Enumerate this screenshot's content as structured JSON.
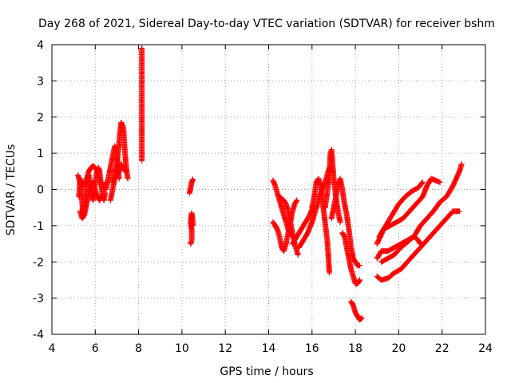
{
  "chart_data": {
    "type": "scatter",
    "title": "Day 268 of 2021, Sidereal Day-to-day VTEC variation (SDTVAR) for receiver bshm",
    "xlabel": "GPS time / hours",
    "ylabel": "SDTVAR / TECUs",
    "xlim": [
      4,
      24
    ],
    "ylim": [
      -4,
      4
    ],
    "xticks": [
      "4",
      "6",
      "8",
      "10",
      "12",
      "14",
      "16",
      "18",
      "20",
      "22",
      "24"
    ],
    "yticks": [
      "-4",
      "-3",
      "-2",
      "-1",
      "0",
      "1",
      "2",
      "3",
      "4"
    ],
    "grid": true,
    "marker": "+",
    "color": "#ff0000",
    "series": [
      {
        "name": "SDTVAR",
        "segments": [
          [
            [
              5.25,
              -0.2
            ],
            [
              5.3,
              0.3
            ],
            [
              5.35,
              0.0
            ],
            [
              5.4,
              -0.4
            ],
            [
              5.45,
              -0.7
            ],
            [
              5.5,
              -0.5
            ],
            [
              5.55,
              -0.2
            ],
            [
              5.6,
              0.1
            ],
            [
              5.65,
              0.3
            ],
            [
              5.7,
              0.4
            ],
            [
              5.75,
              0.2
            ],
            [
              5.8,
              0.0
            ],
            [
              5.85,
              -0.2
            ],
            [
              5.9,
              -0.3
            ],
            [
              5.95,
              -0.1
            ],
            [
              6.0,
              0.2
            ],
            [
              6.05,
              0.4
            ],
            [
              6.1,
              0.55
            ],
            [
              6.15,
              0.6
            ],
            [
              6.2,
              0.5
            ],
            [
              6.25,
              0.2
            ],
            [
              6.3,
              0.0
            ],
            [
              6.35,
              -0.2
            ],
            [
              6.4,
              -0.3
            ],
            [
              6.45,
              -0.1
            ]
          ],
          [
            [
              5.2,
              0.4
            ],
            [
              5.3,
              0.2
            ],
            [
              5.4,
              0.1
            ],
            [
              5.5,
              0.15
            ],
            [
              5.6,
              0.3
            ],
            [
              5.7,
              0.5
            ],
            [
              5.8,
              0.6
            ],
            [
              5.9,
              0.65
            ],
            [
              6.0,
              0.6
            ],
            [
              6.1,
              0.5
            ],
            [
              6.2,
              0.3
            ],
            [
              6.3,
              0.1
            ],
            [
              6.4,
              0.0
            ],
            [
              6.5,
              0.2
            ]
          ],
          [
            [
              5.3,
              -0.6
            ],
            [
              5.4,
              -0.8
            ],
            [
              5.5,
              -0.7
            ],
            [
              5.6,
              -0.4
            ],
            [
              5.7,
              -0.1
            ],
            [
              5.8,
              0.1
            ],
            [
              5.9,
              0.2
            ],
            [
              6.0,
              0.0
            ],
            [
              6.1,
              -0.2
            ],
            [
              6.2,
              -0.3
            ],
            [
              6.3,
              -0.2
            ]
          ],
          [
            [
              6.5,
              0.0
            ],
            [
              6.6,
              0.3
            ],
            [
              6.7,
              0.6
            ],
            [
              6.8,
              0.9
            ],
            [
              6.9,
              1.2
            ],
            [
              7.0,
              1.0
            ],
            [
              7.05,
              0.6
            ],
            [
              7.1,
              0.3
            ]
          ],
          [
            [
              6.8,
              0.2
            ],
            [
              6.9,
              0.5
            ],
            [
              7.0,
              0.7
            ],
            [
              7.05,
              1.0
            ],
            [
              7.1,
              1.3
            ],
            [
              7.15,
              1.6
            ],
            [
              7.2,
              1.85
            ],
            [
              7.3,
              1.7
            ],
            [
              7.35,
              1.2
            ],
            [
              7.4,
              0.8
            ],
            [
              7.45,
              0.5
            ],
            [
              7.5,
              0.3
            ]
          ],
          [
            [
              6.7,
              -0.3
            ],
            [
              6.8,
              0.0
            ],
            [
              6.9,
              0.3
            ],
            [
              7.0,
              0.4
            ],
            [
              7.1,
              0.5
            ],
            [
              7.2,
              0.7
            ],
            [
              7.3,
              0.6
            ],
            [
              7.4,
              0.5
            ]
          ],
          [
            [
              8.15,
              0.8
            ],
            [
              8.15,
              1.5
            ],
            [
              8.15,
              1.6
            ],
            [
              8.15,
              2.5
            ],
            [
              8.15,
              3.9
            ]
          ],
          [
            [
              10.4,
              -1.5
            ],
            [
              10.45,
              -1.4
            ],
            [
              10.45,
              -1.1
            ],
            [
              10.4,
              -0.95
            ],
            [
              10.42,
              -0.8
            ],
            [
              10.45,
              -0.65
            ],
            [
              10.5,
              -0.9
            ],
            [
              10.5,
              -1.0
            ]
          ],
          [
            [
              10.35,
              -0.1
            ],
            [
              10.4,
              0.05
            ],
            [
              10.45,
              0.2
            ],
            [
              10.5,
              0.28
            ]
          ],
          [
            [
              14.2,
              0.25
            ],
            [
              14.3,
              0.1
            ],
            [
              14.4,
              -0.1
            ],
            [
              14.5,
              -0.3
            ],
            [
              14.6,
              -0.5
            ],
            [
              14.7,
              -0.7
            ],
            [
              14.8,
              -0.9
            ],
            [
              14.9,
              -1.1
            ],
            [
              15.0,
              -1.2
            ],
            [
              15.1,
              -1.3
            ]
          ],
          [
            [
              14.2,
              -0.9
            ],
            [
              14.3,
              -1.0
            ],
            [
              14.4,
              -1.1
            ],
            [
              14.5,
              -1.3
            ],
            [
              14.6,
              -1.6
            ],
            [
              14.7,
              -1.7
            ],
            [
              14.8,
              -1.5
            ],
            [
              14.9,
              -1.2
            ],
            [
              15.0,
              -0.9
            ],
            [
              15.1,
              -0.6
            ],
            [
              15.2,
              -0.4
            ],
            [
              15.3,
              -0.3
            ]
          ],
          [
            [
              14.5,
              -0.2
            ],
            [
              14.6,
              -0.25
            ],
            [
              14.7,
              -0.3
            ],
            [
              14.8,
              -0.4
            ],
            [
              14.9,
              -0.6
            ],
            [
              15.0,
              -0.9
            ],
            [
              15.1,
              -1.2
            ],
            [
              15.2,
              -1.5
            ],
            [
              15.3,
              -1.7
            ],
            [
              15.35,
              -1.8
            ]
          ],
          [
            [
              15.1,
              -1.5
            ],
            [
              15.3,
              -1.3
            ],
            [
              15.5,
              -1.1
            ],
            [
              15.7,
              -0.9
            ],
            [
              15.9,
              -0.7
            ],
            [
              16.0,
              -0.55
            ],
            [
              16.1,
              -0.5
            ]
          ],
          [
            [
              15.4,
              -1.6
            ],
            [
              15.6,
              -1.4
            ],
            [
              15.8,
              -1.2
            ],
            [
              16.0,
              -0.9
            ],
            [
              16.2,
              -0.5
            ],
            [
              16.4,
              -0.1
            ],
            [
              16.6,
              0.2
            ],
            [
              16.7,
              0.4
            ],
            [
              16.8,
              0.6
            ]
          ],
          [
            [
              16.0,
              -0.5
            ],
            [
              16.1,
              -0.2
            ],
            [
              16.2,
              0.2
            ],
            [
              16.3,
              0.3
            ],
            [
              16.4,
              0.1
            ],
            [
              16.5,
              -0.4
            ],
            [
              16.6,
              -0.9
            ],
            [
              16.7,
              -1.4
            ],
            [
              16.75,
              -1.8
            ],
            [
              16.8,
              -2.3
            ]
          ],
          [
            [
              16.6,
              -0.5
            ],
            [
              16.7,
              -0.1
            ],
            [
              16.8,
              0.4
            ],
            [
              16.85,
              1.0
            ],
            [
              16.9,
              1.1
            ],
            [
              16.95,
              0.7
            ],
            [
              17.0,
              0.3
            ],
            [
              17.1,
              -0.2
            ],
            [
              17.2,
              -0.6
            ],
            [
              17.3,
              -0.9
            ]
          ],
          [
            [
              16.9,
              -0.8
            ],
            [
              17.0,
              -0.5
            ],
            [
              17.1,
              -0.2
            ],
            [
              17.2,
              0.1
            ],
            [
              17.3,
              0.3
            ],
            [
              17.4,
              0.0
            ],
            [
              17.5,
              -0.4
            ],
            [
              17.6,
              -0.7
            ],
            [
              17.7,
              -1.1
            ],
            [
              17.8,
              -1.6
            ],
            [
              17.9,
              -1.9
            ],
            [
              18.0,
              -2.0
            ],
            [
              18.1,
              -2.1
            ],
            [
              18.2,
              -2.1
            ]
          ],
          [
            [
              17.4,
              -1.2
            ],
            [
              17.5,
              -1.3
            ],
            [
              17.6,
              -1.6
            ],
            [
              17.7,
              -1.9
            ],
            [
              17.8,
              -2.2
            ],
            [
              17.9,
              -2.4
            ],
            [
              18.0,
              -2.6
            ],
            [
              18.1,
              -2.6
            ],
            [
              18.2,
              -2.5
            ]
          ],
          [
            [
              17.8,
              -3.1
            ],
            [
              17.9,
              -3.2
            ],
            [
              18.0,
              -3.4
            ],
            [
              18.1,
              -3.5
            ],
            [
              18.2,
              -3.6
            ],
            [
              18.3,
              -3.55
            ]
          ],
          [
            [
              19.0,
              -2.4
            ],
            [
              19.2,
              -2.5
            ],
            [
              19.5,
              -2.45
            ],
            [
              19.8,
              -2.3
            ],
            [
              20.1,
              -2.2
            ],
            [
              20.4,
              -2.0
            ],
            [
              20.7,
              -1.8
            ],
            [
              21.0,
              -1.6
            ],
            [
              21.3,
              -1.4
            ],
            [
              21.6,
              -1.2
            ],
            [
              21.9,
              -1.0
            ],
            [
              22.2,
              -0.8
            ],
            [
              22.5,
              -0.6
            ],
            [
              22.8,
              -0.6
            ]
          ],
          [
            [
              19.0,
              -1.9
            ],
            [
              19.2,
              -1.7
            ],
            [
              19.5,
              -1.7
            ],
            [
              19.8,
              -1.6
            ],
            [
              20.1,
              -1.5
            ],
            [
              20.4,
              -1.4
            ],
            [
              20.7,
              -1.3
            ],
            [
              21.0,
              -1.0
            ],
            [
              21.3,
              -0.8
            ],
            [
              21.6,
              -0.6
            ],
            [
              21.9,
              -0.35
            ],
            [
              22.2,
              -0.2
            ],
            [
              22.5,
              0.1
            ],
            [
              22.8,
              0.5
            ],
            [
              22.9,
              0.7
            ]
          ],
          [
            [
              19.0,
              -1.5
            ],
            [
              19.3,
              -1.1
            ],
            [
              19.6,
              -1.0
            ],
            [
              19.9,
              -0.9
            ],
            [
              20.2,
              -0.8
            ],
            [
              20.5,
              -0.6
            ],
            [
              20.8,
              -0.4
            ],
            [
              21.1,
              -0.2
            ],
            [
              21.3,
              0.1
            ],
            [
              21.5,
              0.3
            ],
            [
              21.7,
              0.25
            ],
            [
              21.9,
              0.2
            ]
          ],
          [
            [
              19.1,
              -1.3
            ],
            [
              19.4,
              -1.0
            ],
            [
              19.7,
              -0.7
            ],
            [
              20.0,
              -0.4
            ],
            [
              20.3,
              -0.2
            ],
            [
              20.6,
              -0.05
            ],
            [
              20.9,
              0.05
            ],
            [
              21.1,
              0.2
            ]
          ],
          [
            [
              19.2,
              -2.0
            ],
            [
              19.5,
              -1.9
            ],
            [
              19.8,
              -1.8
            ],
            [
              20.1,
              -1.6
            ],
            [
              20.4,
              -1.45
            ],
            [
              20.7,
              -1.3
            ],
            [
              20.9,
              -1.4
            ],
            [
              21.0,
              -1.5
            ]
          ]
        ]
      }
    ]
  }
}
